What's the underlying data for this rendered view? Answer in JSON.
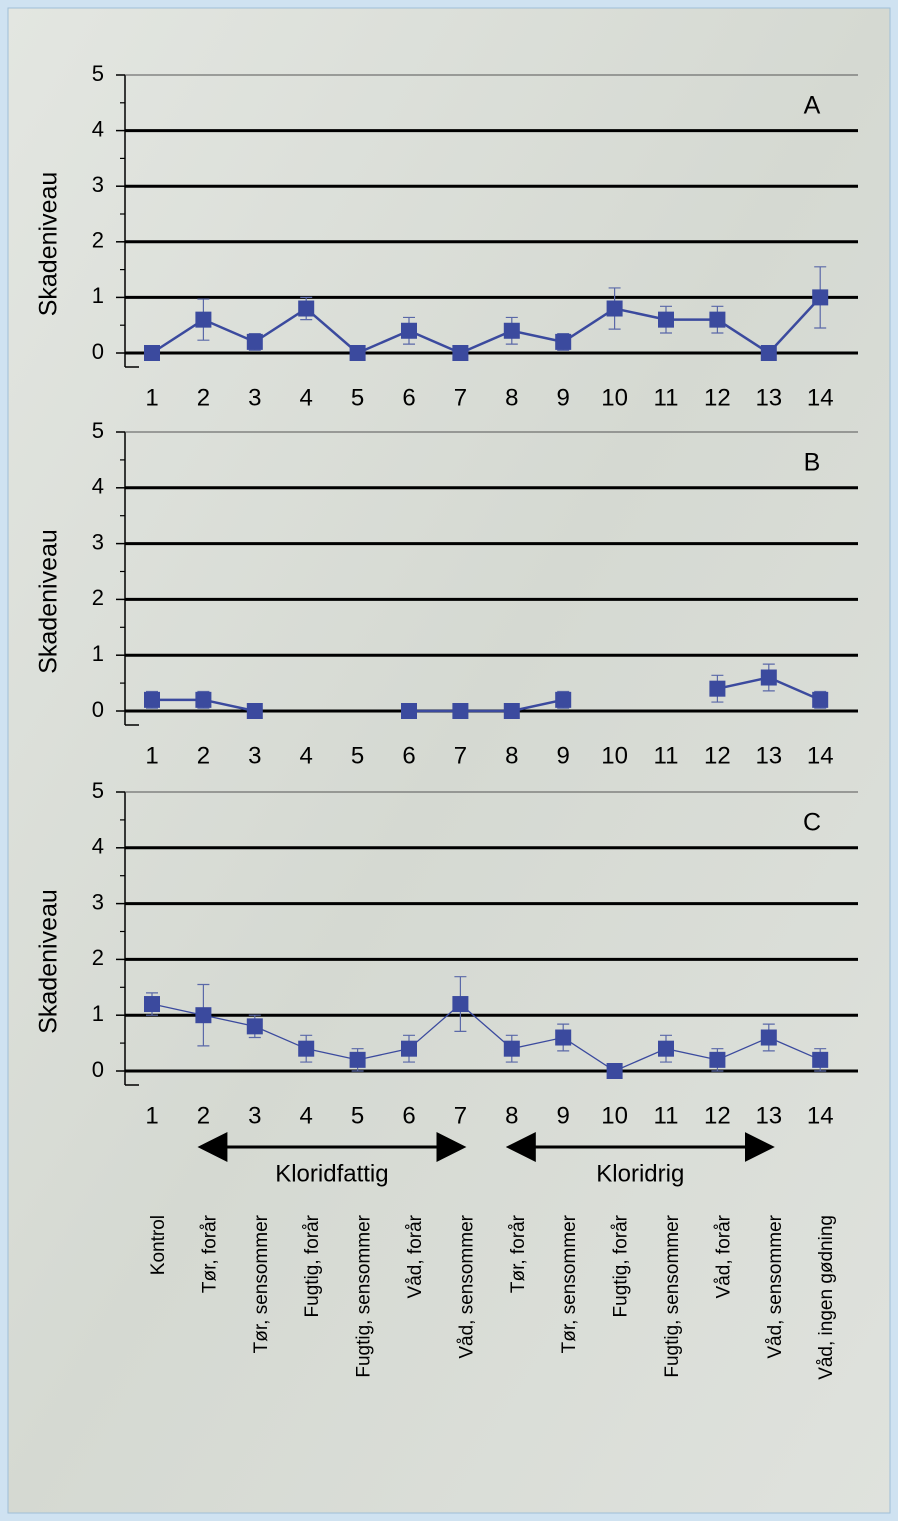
{
  "chart_data": [
    {
      "type": "line",
      "panel": "A",
      "y_label": "Skadeniveau",
      "categories": [
        "1",
        "2",
        "3",
        "4",
        "5",
        "6",
        "7",
        "8",
        "9",
        "10",
        "11",
        "12",
        "13",
        "14"
      ],
      "series": [
        {
          "color": "#3b4a9e",
          "values": [
            0,
            0.6,
            0.2,
            0.8,
            0,
            0.4,
            0,
            0.4,
            0.2,
            0.8,
            0.6,
            0.6,
            0,
            1.0
          ],
          "errors": [
            0,
            0.37,
            0.15,
            0.2,
            0,
            0.24,
            0,
            0.24,
            0.15,
            0.37,
            0.24,
            0.24,
            0,
            0.55
          ]
        }
      ],
      "ylim": [
        0,
        5
      ],
      "yticks": [
        0,
        1,
        2,
        3,
        4,
        5
      ],
      "grid": true
    },
    {
      "type": "line",
      "panel": "B",
      "y_label": "Skadeniveau",
      "categories": [
        "1",
        "2",
        "3",
        "4",
        "5",
        "6",
        "7",
        "8",
        "9",
        "10",
        "11",
        "12",
        "13",
        "14"
      ],
      "series": [
        {
          "color": "#3b4a9e",
          "values": [
            0.2,
            0.2,
            0,
            null,
            null,
            0,
            0,
            0,
            0.2,
            null,
            null,
            0.4,
            0.6,
            0.2
          ],
          "errors": [
            0.15,
            0.15,
            0,
            null,
            null,
            0,
            0,
            0,
            0.15,
            null,
            null,
            0.24,
            0.24,
            0.15
          ]
        }
      ],
      "ylim": [
        0,
        5
      ],
      "yticks": [
        0,
        1,
        2,
        3,
        4,
        5
      ],
      "grid": true
    },
    {
      "type": "line",
      "panel": "C",
      "y_label": "Skadeniveau",
      "categories": [
        "1",
        "2",
        "3",
        "4",
        "5",
        "6",
        "7",
        "8",
        "9",
        "10",
        "11",
        "12",
        "13",
        "14"
      ],
      "series": [
        {
          "color": "#3b4a9e",
          "values": [
            1.2,
            1.0,
            0.8,
            0.4,
            0.2,
            0.4,
            1.2,
            0.4,
            0.6,
            0,
            0.4,
            0.2,
            0.6,
            0.2
          ],
          "errors": [
            0.2,
            0.55,
            0.2,
            0.24,
            0.2,
            0.24,
            0.49,
            0.24,
            0.24,
            0,
            0.24,
            0.2,
            0.24,
            0.2
          ]
        }
      ],
      "ylim": [
        0,
        5
      ],
      "yticks": [
        0,
        1,
        2,
        3,
        4,
        5
      ],
      "grid": true,
      "groups": [
        "Kloridfattig",
        "Kloridrig"
      ],
      "category_descriptions": [
        "Kontrol",
        "Tør, forår",
        "Tør, sensommer",
        "Fugtig, forår",
        "Fugtig, sensommer",
        "Våd, forår",
        "Våd, sensommer",
        "Tør, forår",
        "Tør, sensommer",
        "Fugtig, forår",
        "Fugtig, sensommer",
        "Våd, forår",
        "Våd, sensommer",
        "Våd, ingen gødning"
      ]
    }
  ]
}
